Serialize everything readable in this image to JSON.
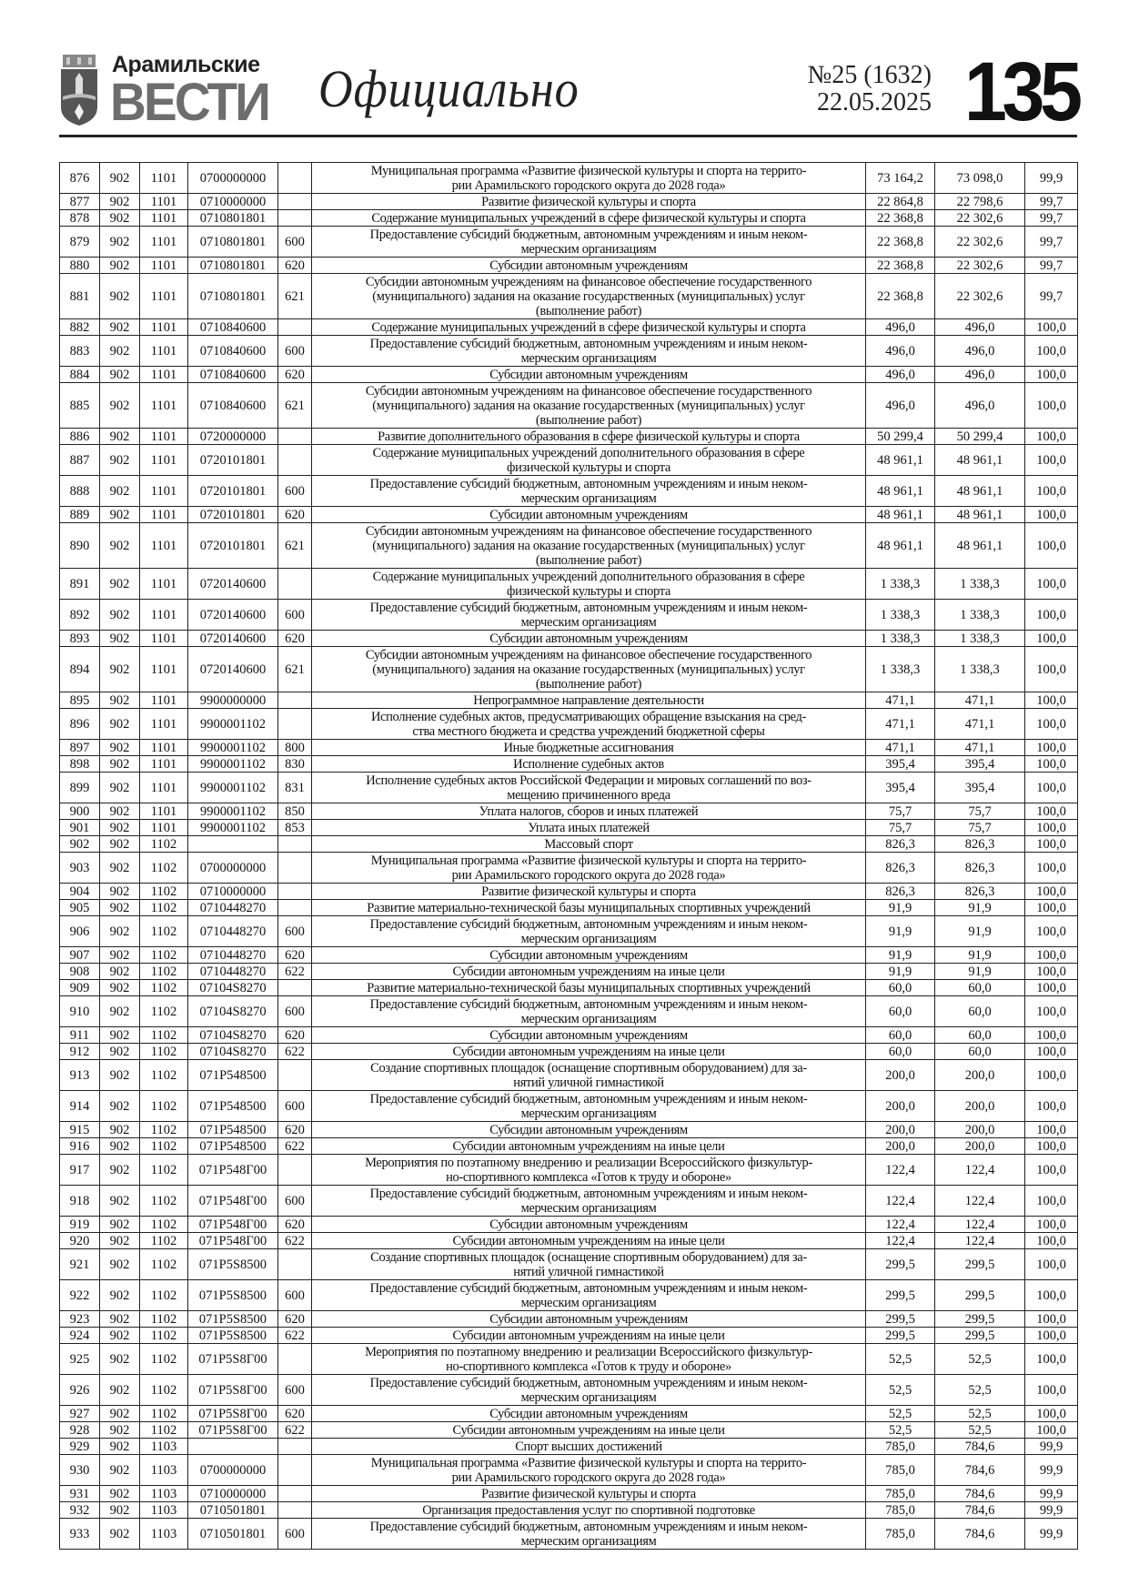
{
  "header": {
    "logo_top": "Арамильские",
    "logo_main": "ВЕСТИ",
    "section_title": "Официально",
    "issue_number": "№25 (1632)",
    "issue_date": "22.05.2025",
    "page_number": "135"
  },
  "table": {
    "rows": [
      [
        "876",
        "902",
        "1101",
        "0700000000",
        "",
        "Муниципальная программа «Развитие физической культуры и спорта на террито-\nрии Арамильского городского округа до 2028 года»",
        "73 164,2",
        "73 098,0",
        "99,9"
      ],
      [
        "877",
        "902",
        "1101",
        "0710000000",
        "",
        "Развитие физической культуры и спорта",
        "22 864,8",
        "22 798,6",
        "99,7"
      ],
      [
        "878",
        "902",
        "1101",
        "0710801801",
        "",
        "Содержание муниципальных учреждений в сфере физической культуры и спорта",
        "22 368,8",
        "22 302,6",
        "99,7"
      ],
      [
        "879",
        "902",
        "1101",
        "0710801801",
        "600",
        "Предоставление субсидий бюджетным, автономным учреждениям и иным неком-\nмерческим организациям",
        "22 368,8",
        "22 302,6",
        "99,7"
      ],
      [
        "880",
        "902",
        "1101",
        "0710801801",
        "620",
        "Субсидии автономным учреждениям",
        "22 368,8",
        "22 302,6",
        "99,7"
      ],
      [
        "881",
        "902",
        "1101",
        "0710801801",
        "621",
        "Субсидии автономным учреждениям на финансовое обеспечение государственного\n(муниципального) задания на оказание государственных (муниципальных) услуг\n(выполнение работ)",
        "22 368,8",
        "22 302,6",
        "99,7"
      ],
      [
        "882",
        "902",
        "1101",
        "0710840600",
        "",
        "Содержание муниципальных учреждений в сфере физической культуры и спорта",
        "496,0",
        "496,0",
        "100,0"
      ],
      [
        "883",
        "902",
        "1101",
        "0710840600",
        "600",
        "Предоставление субсидий бюджетным, автономным учреждениям и иным неком-\nмерческим организациям",
        "496,0",
        "496,0",
        "100,0"
      ],
      [
        "884",
        "902",
        "1101",
        "0710840600",
        "620",
        "Субсидии автономным учреждениям",
        "496,0",
        "496,0",
        "100,0"
      ],
      [
        "885",
        "902",
        "1101",
        "0710840600",
        "621",
        "Субсидии автономным учреждениям на финансовое обеспечение государственного\n(муниципального) задания на оказание государственных (муниципальных) услуг\n(выполнение работ)",
        "496,0",
        "496,0",
        "100,0"
      ],
      [
        "886",
        "902",
        "1101",
        "0720000000",
        "",
        "Развитие дополнительного образования в сфере физической культуры и спорта",
        "50 299,4",
        "50 299,4",
        "100,0"
      ],
      [
        "887",
        "902",
        "1101",
        "0720101801",
        "",
        "Содержание муниципальных учреждений дополнительного образования в сфере\nфизической культуры и спорта",
        "48 961,1",
        "48 961,1",
        "100,0"
      ],
      [
        "888",
        "902",
        "1101",
        "0720101801",
        "600",
        "Предоставление субсидий бюджетным, автономным учреждениям и иным неком-\nмерческим организациям",
        "48 961,1",
        "48 961,1",
        "100,0"
      ],
      [
        "889",
        "902",
        "1101",
        "0720101801",
        "620",
        "Субсидии автономным учреждениям",
        "48 961,1",
        "48 961,1",
        "100,0"
      ],
      [
        "890",
        "902",
        "1101",
        "0720101801",
        "621",
        "Субсидии автономным учреждениям на финансовое обеспечение государственного\n(муниципального) задания на оказание государственных (муниципальных) услуг\n(выполнение работ)",
        "48 961,1",
        "48 961,1",
        "100,0"
      ],
      [
        "891",
        "902",
        "1101",
        "0720140600",
        "",
        "Содержание муниципальных учреждений дополнительного образования в сфере\nфизической культуры и спорта",
        "1 338,3",
        "1 338,3",
        "100,0"
      ],
      [
        "892",
        "902",
        "1101",
        "0720140600",
        "600",
        "Предоставление субсидий бюджетным, автономным учреждениям и иным неком-\nмерческим организациям",
        "1 338,3",
        "1 338,3",
        "100,0"
      ],
      [
        "893",
        "902",
        "1101",
        "0720140600",
        "620",
        "Субсидии автономным учреждениям",
        "1 338,3",
        "1 338,3",
        "100,0"
      ],
      [
        "894",
        "902",
        "1101",
        "0720140600",
        "621",
        "Субсидии автономным учреждениям на финансовое обеспечение государственного\n(муниципального) задания на оказание государственных (муниципальных) услуг\n(выполнение работ)",
        "1 338,3",
        "1 338,3",
        "100,0"
      ],
      [
        "895",
        "902",
        "1101",
        "9900000000",
        "",
        "Непрограммное направление деятельности",
        "471,1",
        "471,1",
        "100,0"
      ],
      [
        "896",
        "902",
        "1101",
        "9900001102",
        "",
        "Исполнение судебных актов, предусматривающих обращение взыскания на сред-\nства местного бюджета и средства учреждений бюджетной сферы",
        "471,1",
        "471,1",
        "100,0"
      ],
      [
        "897",
        "902",
        "1101",
        "9900001102",
        "800",
        "Иные бюджетные ассигнования",
        "471,1",
        "471,1",
        "100,0"
      ],
      [
        "898",
        "902",
        "1101",
        "9900001102",
        "830",
        "Исполнение судебных актов",
        "395,4",
        "395,4",
        "100,0"
      ],
      [
        "899",
        "902",
        "1101",
        "9900001102",
        "831",
        "Исполнение судебных актов Российской Федерации и мировых соглашений по воз-\nмещению причиненного вреда",
        "395,4",
        "395,4",
        "100,0"
      ],
      [
        "900",
        "902",
        "1101",
        "9900001102",
        "850",
        "Уплата налогов, сборов и иных платежей",
        "75,7",
        "75,7",
        "100,0"
      ],
      [
        "901",
        "902",
        "1101",
        "9900001102",
        "853",
        "Уплата иных платежей",
        "75,7",
        "75,7",
        "100,0"
      ],
      [
        "902",
        "902",
        "1102",
        "",
        "",
        "Массовый спорт",
        "826,3",
        "826,3",
        "100,0"
      ],
      [
        "903",
        "902",
        "1102",
        "0700000000",
        "",
        "Муниципальная программа «Развитие физической культуры и спорта на террито-\nрии Арамильского городского округа до 2028 года»",
        "826,3",
        "826,3",
        "100,0"
      ],
      [
        "904",
        "902",
        "1102",
        "0710000000",
        "",
        "Развитие физической культуры и спорта",
        "826,3",
        "826,3",
        "100,0"
      ],
      [
        "905",
        "902",
        "1102",
        "0710448270",
        "",
        "Развитие материально-технической базы муниципальных спортивных учреждений",
        "91,9",
        "91,9",
        "100,0"
      ],
      [
        "906",
        "902",
        "1102",
        "0710448270",
        "600",
        "Предоставление субсидий бюджетным, автономным учреждениям и иным неком-\nмерческим организациям",
        "91,9",
        "91,9",
        "100,0"
      ],
      [
        "907",
        "902",
        "1102",
        "0710448270",
        "620",
        "Субсидии автономным учреждениям",
        "91,9",
        "91,9",
        "100,0"
      ],
      [
        "908",
        "902",
        "1102",
        "0710448270",
        "622",
        "Субсидии автономным учреждениям на иные цели",
        "91,9",
        "91,9",
        "100,0"
      ],
      [
        "909",
        "902",
        "1102",
        "07104S8270",
        "",
        "Развитие материально-технической базы муниципальных спортивных учреждений",
        "60,0",
        "60,0",
        "100,0"
      ],
      [
        "910",
        "902",
        "1102",
        "07104S8270",
        "600",
        "Предоставление субсидий бюджетным, автономным учреждениям и иным неком-\nмерческим организациям",
        "60,0",
        "60,0",
        "100,0"
      ],
      [
        "911",
        "902",
        "1102",
        "07104S8270",
        "620",
        "Субсидии автономным учреждениям",
        "60,0",
        "60,0",
        "100,0"
      ],
      [
        "912",
        "902",
        "1102",
        "07104S8270",
        "622",
        "Субсидии автономным учреждениям на иные цели",
        "60,0",
        "60,0",
        "100,0"
      ],
      [
        "913",
        "902",
        "1102",
        "071P548500",
        "",
        "Создание спортивных площадок (оснащение спортивным оборудованием) для за-\nнятий уличной гимнастикой",
        "200,0",
        "200,0",
        "100,0"
      ],
      [
        "914",
        "902",
        "1102",
        "071P548500",
        "600",
        "Предоставление субсидий бюджетным, автономным учреждениям и иным неком-\nмерческим организациям",
        "200,0",
        "200,0",
        "100,0"
      ],
      [
        "915",
        "902",
        "1102",
        "071P548500",
        "620",
        "Субсидии автономным учреждениям",
        "200,0",
        "200,0",
        "100,0"
      ],
      [
        "916",
        "902",
        "1102",
        "071P548500",
        "622",
        "Субсидии автономным учреждениям на иные цели",
        "200,0",
        "200,0",
        "100,0"
      ],
      [
        "917",
        "902",
        "1102",
        "071P548Г00",
        "",
        "Мероприятия по поэтапному внедрению и реализации Всероссийского физкультур-\nно-спортивного комплекса «Готов к труду и обороне»",
        "122,4",
        "122,4",
        "100,0"
      ],
      [
        "918",
        "902",
        "1102",
        "071P548Г00",
        "600",
        "Предоставление субсидий бюджетным, автономным учреждениям и иным неком-\nмерческим организациям",
        "122,4",
        "122,4",
        "100,0"
      ],
      [
        "919",
        "902",
        "1102",
        "071P548Г00",
        "620",
        "Субсидии автономным учреждениям",
        "122,4",
        "122,4",
        "100,0"
      ],
      [
        "920",
        "902",
        "1102",
        "071P548Г00",
        "622",
        "Субсидии автономным учреждениям на иные цели",
        "122,4",
        "122,4",
        "100,0"
      ],
      [
        "921",
        "902",
        "1102",
        "071P5S8500",
        "",
        "Создание спортивных площадок (оснащение спортивным оборудованием) для за-\nнятий уличной гимнастикой",
        "299,5",
        "299,5",
        "100,0"
      ],
      [
        "922",
        "902",
        "1102",
        "071P5S8500",
        "600",
        "Предоставление субсидий бюджетным, автономным учреждениям и иным неком-\nмерческим организациям",
        "299,5",
        "299,5",
        "100,0"
      ],
      [
        "923",
        "902",
        "1102",
        "071P5S8500",
        "620",
        "Субсидии автономным учреждениям",
        "299,5",
        "299,5",
        "100,0"
      ],
      [
        "924",
        "902",
        "1102",
        "071P5S8500",
        "622",
        "Субсидии автономным учреждениям на иные цели",
        "299,5",
        "299,5",
        "100,0"
      ],
      [
        "925",
        "902",
        "1102",
        "071P5S8Г00",
        "",
        "Мероприятия по поэтапному внедрению и реализации Всероссийского физкультур-\nно-спортивного комплекса «Готов к труду и обороне»",
        "52,5",
        "52,5",
        "100,0"
      ],
      [
        "926",
        "902",
        "1102",
        "071P5S8Г00",
        "600",
        "Предоставление субсидий бюджетным, автономным учреждениям и иным неком-\nмерческим организациям",
        "52,5",
        "52,5",
        "100,0"
      ],
      [
        "927",
        "902",
        "1102",
        "071P5S8Г00",
        "620",
        "Субсидии автономным учреждениям",
        "52,5",
        "52,5",
        "100,0"
      ],
      [
        "928",
        "902",
        "1102",
        "071P5S8Г00",
        "622",
        "Субсидии автономным учреждениям на иные цели",
        "52,5",
        "52,5",
        "100,0"
      ],
      [
        "929",
        "902",
        "1103",
        "",
        "",
        "Спорт высших достижений",
        "785,0",
        "784,6",
        "99,9"
      ],
      [
        "930",
        "902",
        "1103",
        "0700000000",
        "",
        "Муниципальная программа «Развитие физической культуры и спорта на террито-\nрии Арамильского городского округа до 2028 года»",
        "785,0",
        "784,6",
        "99,9"
      ],
      [
        "931",
        "902",
        "1103",
        "0710000000",
        "",
        "Развитие физической культуры и спорта",
        "785,0",
        "784,6",
        "99,9"
      ],
      [
        "932",
        "902",
        "1103",
        "0710501801",
        "",
        "Организация предоставления услуг по спортивной подготовке",
        "785,0",
        "784,6",
        "99,9"
      ],
      [
        "933",
        "902",
        "1103",
        "0710501801",
        "600",
        "Предоставление субсидий бюджетным, автономным учреждениям и иным неком-\nмерческим организациям",
        "785,0",
        "784,6",
        "99,9"
      ]
    ]
  }
}
